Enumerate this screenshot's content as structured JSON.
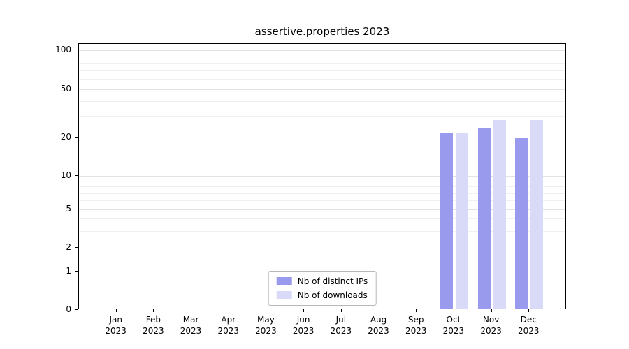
{
  "chart_data": {
    "type": "bar",
    "title": "assertive.properties 2023",
    "categories": [
      "Jan 2023",
      "Feb 2023",
      "Mar 2023",
      "Apr 2023",
      "May 2023",
      "Jun 2023",
      "Jul 2023",
      "Aug 2023",
      "Sep 2023",
      "Oct 2023",
      "Nov 2023",
      "Dec 2023"
    ],
    "series": [
      {
        "name": "Nb of distinct IPs",
        "color": "#9999ee",
        "values": [
          0,
          0,
          0,
          0,
          0,
          0,
          0,
          0,
          0,
          22,
          24,
          20
        ]
      },
      {
        "name": "Nb of downloads",
        "color": "#d9d9f8",
        "values": [
          0,
          0,
          0,
          0,
          0,
          0,
          0,
          0,
          0,
          22,
          28,
          28
        ]
      }
    ],
    "yscale": "symlog",
    "ylim": [
      0,
      100
    ],
    "yticks": [
      0,
      1,
      2,
      5,
      10,
      20,
      50,
      100
    ],
    "minor_gridlines": [
      3,
      4,
      6,
      7,
      8,
      9,
      30,
      40,
      60,
      70,
      80,
      90
    ],
    "grid": "horizontal",
    "legend_position": "lower-center-inside"
  }
}
